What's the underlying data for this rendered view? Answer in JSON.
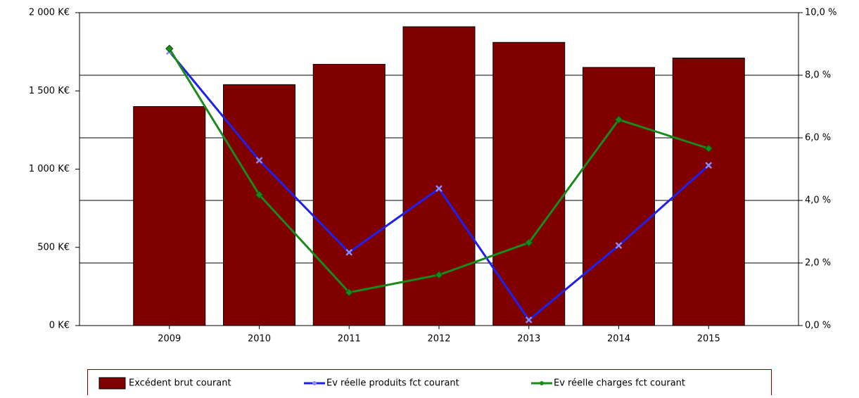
{
  "chart_data": {
    "type": "bar_line",
    "categories": [
      "2009",
      "2010",
      "2011",
      "2012",
      "2013",
      "2014",
      "2015"
    ],
    "series": [
      {
        "name": "Excédent brut courant",
        "color": "#800000",
        "type": "bar",
        "values": [
          1400,
          1540,
          1670,
          1910,
          1810,
          1650,
          1710
        ]
      },
      {
        "name": "Ev réelle produits fct courant",
        "color": "#2020ee",
        "type": "line",
        "axis": "y2",
        "values": [
          8.76,
          5.28,
          2.34,
          4.38,
          0.18,
          2.56,
          5.12
        ]
      },
      {
        "name": "Ev réelle charges fct courant",
        "color": "#1a8a1a",
        "type": "line",
        "axis": "y2",
        "values": [
          8.85,
          4.18,
          1.06,
          1.62,
          2.65,
          6.58,
          5.66
        ]
      }
    ],
    "ylim": [
      0,
      2000
    ],
    "yticks": [
      {
        "value": 0,
        "label": "0 K€"
      },
      {
        "value": 500,
        "label": "500 K€"
      },
      {
        "value": 1000,
        "label": "1 000 K€"
      },
      {
        "value": 1500,
        "label": "1 500 K€"
      },
      {
        "value": 2000,
        "label": "2 000 K€"
      }
    ],
    "y2lim": [
      0,
      10
    ],
    "y2ticks": [
      {
        "value": 0,
        "label": "0,0 %"
      },
      {
        "value": 2,
        "label": "2,0 %"
      },
      {
        "value": 4,
        "label": "4,0 %"
      },
      {
        "value": 6,
        "label": "6,0 %"
      },
      {
        "value": 8,
        "label": "8,0 %"
      },
      {
        "value": 10,
        "label": "10,0 %"
      }
    ],
    "grid": true
  }
}
